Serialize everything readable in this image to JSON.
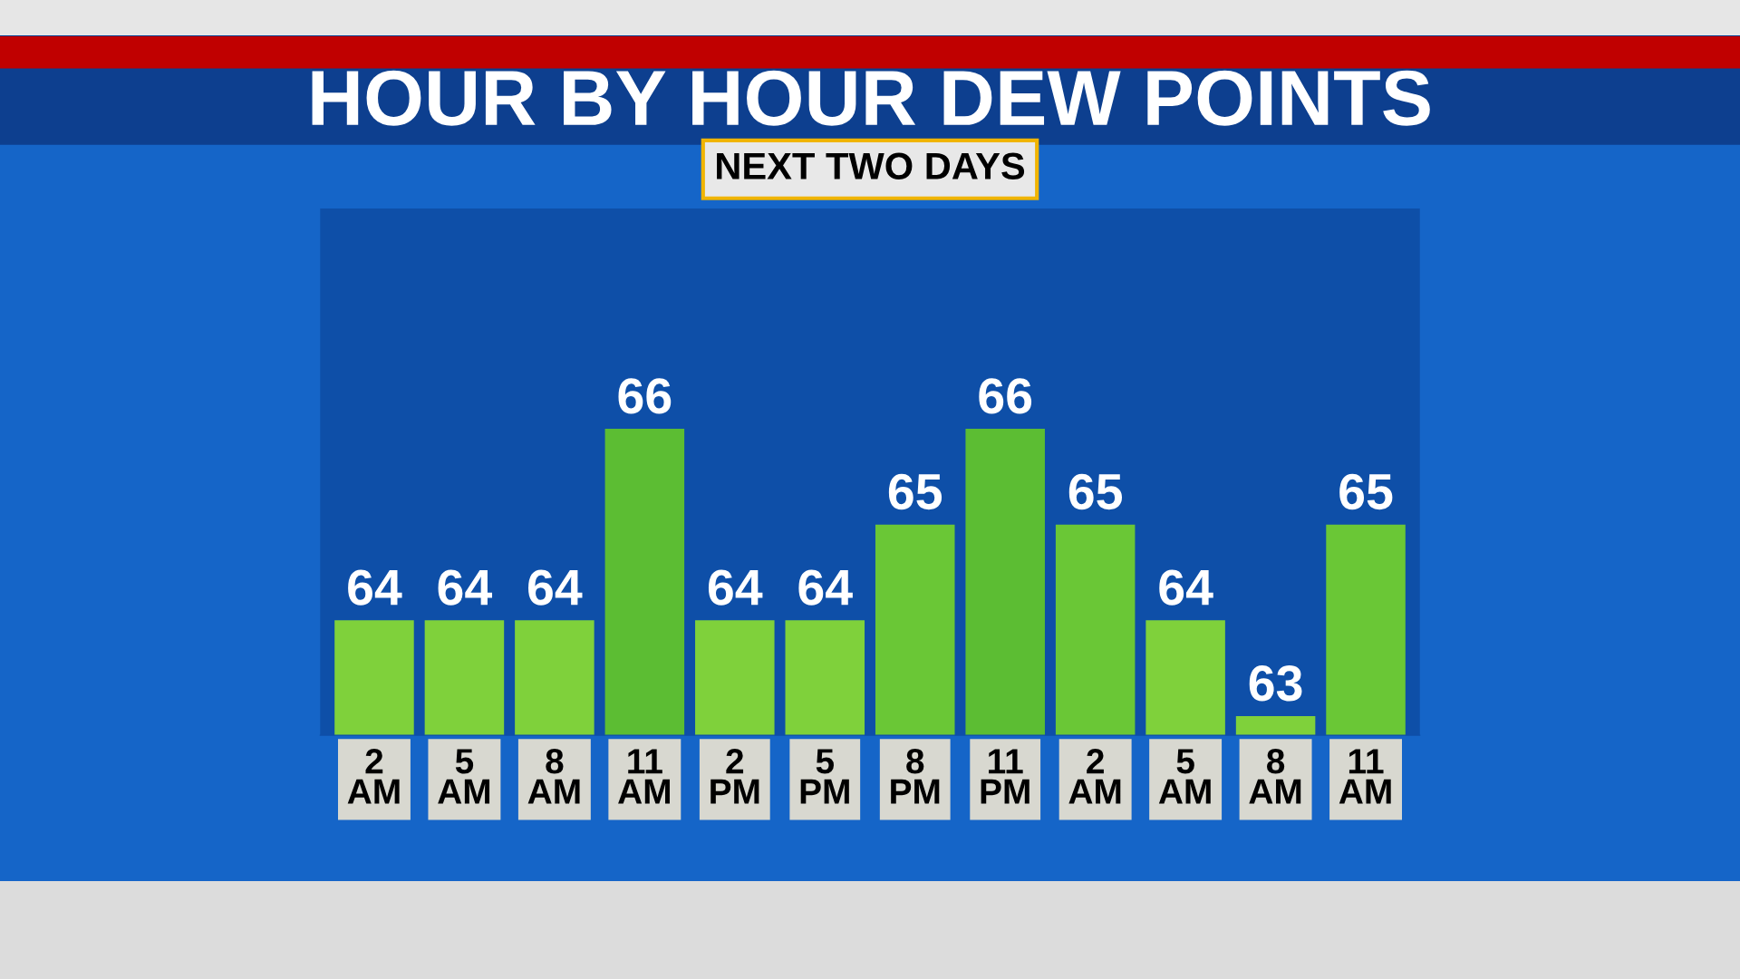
{
  "chart_data": {
    "type": "bar",
    "title": "HOUR BY HOUR DEW POINTS",
    "subtitle": "NEXT TWO DAYS",
    "categories": [
      "2 AM",
      "5 AM",
      "8 AM",
      "11 AM",
      "2 PM",
      "5 PM",
      "8 PM",
      "11 PM",
      "2 AM",
      "5 AM",
      "8 AM",
      "11 AM"
    ],
    "values": [
      64,
      64,
      64,
      66,
      64,
      64,
      65,
      66,
      65,
      64,
      63,
      65
    ],
    "colors": [
      "#7fd13b",
      "#7fd13b",
      "#7fd13b",
      "#5cbd33",
      "#7fd13b",
      "#7fd13b",
      "#6ac736",
      "#5cbd33",
      "#6ac736",
      "#7fd13b",
      "#7fd13b",
      "#6ac736"
    ],
    "ylim": [
      62.8,
      68.3
    ],
    "data_labels": true,
    "grid": false,
    "legend": false,
    "tick_labels": "x"
  }
}
